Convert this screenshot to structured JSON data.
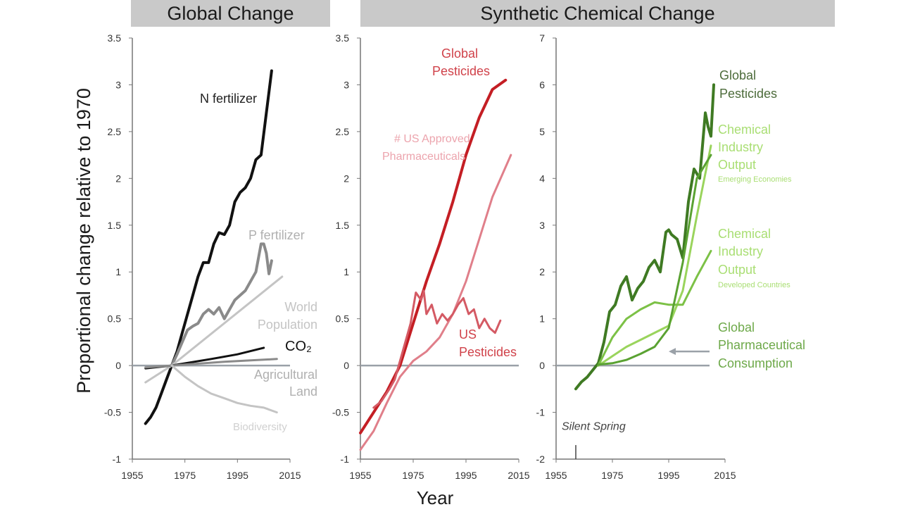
{
  "headers": {
    "global": "Global Change",
    "synthetic": "Synthetic Chemical Change"
  },
  "ylabel": "Proportional change relative to 1970",
  "xlabel": "Year",
  "colors": {
    "axis": "#777777",
    "baseline": "#9aa1a8",
    "black": "#111111",
    "gray": "#8a8a8a",
    "lightgray": "#c4c4c4",
    "red": "#c41e24",
    "pink": "#e07f8a",
    "darkgreen": "#3f7a23",
    "lightgreen": "#9ad45c",
    "green": "#6cbb3c"
  },
  "chart_data": [
    {
      "type": "line",
      "title": "Global Change",
      "xlim": [
        1955,
        2015
      ],
      "ylim": [
        -1,
        3.5
      ],
      "xticks": [
        "1955",
        "1975",
        "1995",
        "2015"
      ],
      "yticks": [
        "-1",
        "-0.5",
        "0",
        "0.5",
        "1",
        "1.5",
        "2",
        "2.5",
        "3",
        "3.5"
      ],
      "series": [
        {
          "name": "N fertilizer",
          "color": "#111111",
          "width": 4,
          "label_color": "#222222",
          "x": [
            1960,
            1962,
            1964,
            1966,
            1968,
            1970,
            1972,
            1974,
            1976,
            1978,
            1980,
            1982,
            1984,
            1986,
            1988,
            1990,
            1992,
            1994,
            1996,
            1998,
            2000,
            2002,
            2004,
            2006,
            2008
          ],
          "y": [
            -0.62,
            -0.55,
            -0.45,
            -0.3,
            -0.15,
            0,
            0.15,
            0.35,
            0.55,
            0.75,
            0.95,
            1.1,
            1.1,
            1.3,
            1.42,
            1.4,
            1.5,
            1.75,
            1.85,
            1.9,
            2.0,
            2.2,
            2.25,
            2.7,
            3.15
          ]
        },
        {
          "name": "P fertilizer",
          "color": "#8a8a8a",
          "width": 4,
          "label_color": "#b0b0b0",
          "x": [
            1970,
            1972,
            1974,
            1976,
            1978,
            1980,
            1982,
            1984,
            1986,
            1988,
            1990,
            1992,
            1994,
            1996,
            1998,
            2000,
            2002,
            2004,
            2005,
            2006,
            2007,
            2008
          ],
          "y": [
            0,
            0.12,
            0.25,
            0.38,
            0.42,
            0.45,
            0.55,
            0.6,
            0.55,
            0.62,
            0.5,
            0.6,
            0.7,
            0.75,
            0.8,
            0.9,
            1.0,
            1.3,
            1.3,
            1.2,
            0.98,
            1.12
          ]
        },
        {
          "name": "World Population",
          "color": "#c4c4c4",
          "width": 3,
          "label_color": "#c4c4c4",
          "x": [
            1960,
            1970,
            2012
          ],
          "y": [
            -0.18,
            0,
            0.95
          ]
        },
        {
          "name": "CO2",
          "color": "#111111",
          "width": 3,
          "label_color": "#111111",
          "x": [
            1960,
            1970,
            1985,
            1995,
            2005
          ],
          "y": [
            -0.03,
            0,
            0.07,
            0.12,
            0.19
          ]
        },
        {
          "name": "Agricultural Land",
          "color": "#8a8a8a",
          "width": 3,
          "label_color": "#b0b0b0",
          "x": [
            1960,
            1970,
            1990,
            2010
          ],
          "y": [
            -0.02,
            0,
            0.04,
            0.07
          ]
        },
        {
          "name": "Biodiversity",
          "color": "#c4c4c4",
          "width": 3,
          "label_color": "#d0d0d0",
          "x": [
            1970,
            1975,
            1980,
            1985,
            1990,
            1995,
            2000,
            2005,
            2010
          ],
          "y": [
            0,
            -0.12,
            -0.22,
            -0.3,
            -0.35,
            -0.4,
            -0.43,
            -0.45,
            -0.5
          ]
        }
      ]
    },
    {
      "type": "line",
      "title": "Synthetic Chemical Change",
      "xlim": [
        1955,
        2015
      ],
      "ylim": [
        -1,
        3.5
      ],
      "xticks": [
        "1955",
        "1975",
        "1995",
        "2015"
      ],
      "yticks": [
        "-1",
        "-0.5",
        "0",
        "0.5",
        "1",
        "1.5",
        "2",
        "2.5",
        "3",
        "3.5"
      ],
      "series": [
        {
          "name": "Global Pesticides",
          "color": "#c41e24",
          "width": 4,
          "label_color": "#d0424a",
          "x": [
            1955,
            1960,
            1965,
            1970,
            1975,
            1980,
            1985,
            1990,
            1995,
            2000,
            2005,
            2010
          ],
          "y": [
            -0.72,
            -0.5,
            -0.28,
            0,
            0.45,
            0.9,
            1.3,
            1.75,
            2.25,
            2.65,
            2.95,
            3.05
          ]
        },
        {
          "name": "# US Approved Pharmaceuticals",
          "color": "#e07f8a",
          "width": 3,
          "label_color": "#eca4ad",
          "x": [
            1955,
            1960,
            1965,
            1970,
            1975,
            1980,
            1985,
            1990,
            1995,
            2000,
            2005,
            2012
          ],
          "y": [
            -0.9,
            -0.7,
            -0.4,
            -0.12,
            0.05,
            0.15,
            0.3,
            0.55,
            0.9,
            1.35,
            1.8,
            2.25
          ]
        },
        {
          "name": "US Pesticides",
          "color": "#d45a64",
          "width": 3,
          "label_color": "#d0424a",
          "x": [
            1960,
            1963,
            1966,
            1968,
            1970,
            1972,
            1974,
            1976,
            1978,
            1979,
            1980,
            1982,
            1984,
            1986,
            1988,
            1990,
            1992,
            1994,
            1996,
            1998,
            2000,
            2002,
            2004,
            2006,
            2008
          ],
          "y": [
            -0.45,
            -0.38,
            -0.25,
            -0.15,
            0.05,
            0.25,
            0.45,
            0.78,
            0.7,
            0.8,
            0.55,
            0.65,
            0.45,
            0.55,
            0.48,
            0.55,
            0.65,
            0.72,
            0.55,
            0.6,
            0.4,
            0.5,
            0.4,
            0.35,
            0.48
          ]
        }
      ]
    },
    {
      "type": "line",
      "title": "",
      "xlim": [
        1955,
        2015
      ],
      "ylim": [
        -2,
        7
      ],
      "xticks": [
        "1955",
        "1975",
        "1995",
        "2015"
      ],
      "yticks": [
        "-2",
        "-1",
        "0",
        "1",
        "2",
        "3",
        "4",
        "5",
        "6",
        "7"
      ],
      "annotation": "Silent Spring",
      "annotation_year": 1962,
      "series": [
        {
          "name": "Global Pesticides",
          "color": "#3f7a23",
          "width": 4,
          "label_color": "#4c6b3a",
          "x": [
            1962,
            1964,
            1966,
            1968,
            1970,
            1972,
            1974,
            1976,
            1978,
            1980,
            1982,
            1984,
            1986,
            1988,
            1990,
            1992,
            1994,
            1995,
            1996,
            1998,
            2000,
            2002,
            2004,
            2006,
            2008,
            2009,
            2010,
            2011
          ],
          "y": [
            -0.5,
            -0.35,
            -0.25,
            -0.1,
            0.05,
            0.5,
            1.15,
            1.3,
            1.7,
            1.9,
            1.4,
            1.65,
            1.8,
            2.1,
            2.25,
            2.0,
            2.85,
            2.9,
            2.8,
            2.7,
            2.3,
            3.5,
            4.2,
            4.0,
            5.4,
            5.1,
            4.9,
            6.0
          ]
        },
        {
          "name": "Chemical Industry Output",
          "sublabel": "Emerging Economies",
          "color": "#9ad45c",
          "width": 3,
          "label_color": "#a9de73",
          "x": [
            1970,
            1975,
            1980,
            1985,
            1990,
            1995,
            2000,
            2005,
            2010
          ],
          "y": [
            0,
            0.2,
            0.4,
            0.55,
            0.7,
            0.85,
            1.6,
            3.2,
            4.7
          ]
        },
        {
          "name": "Chemical Industry Output",
          "sublabel": "Developed Countries",
          "color": "#7cc146",
          "width": 3,
          "label_color": "#a9de73",
          "x": [
            1970,
            1975,
            1980,
            1985,
            1990,
            1995,
            2000,
            2005,
            2010
          ],
          "y": [
            0,
            0.6,
            1.0,
            1.2,
            1.35,
            1.3,
            1.3,
            1.9,
            2.45
          ]
        },
        {
          "name": "Global Pharmaceutical Consumption",
          "color": "#5aa232",
          "width": 3,
          "label_color": "#6ea94a",
          "x": [
            1970,
            1975,
            1980,
            1985,
            1990,
            1995,
            2000,
            2005,
            2010
          ],
          "y": [
            0.02,
            0.05,
            0.12,
            0.25,
            0.4,
            0.8,
            2.2,
            4.0,
            4.5
          ]
        }
      ]
    }
  ]
}
